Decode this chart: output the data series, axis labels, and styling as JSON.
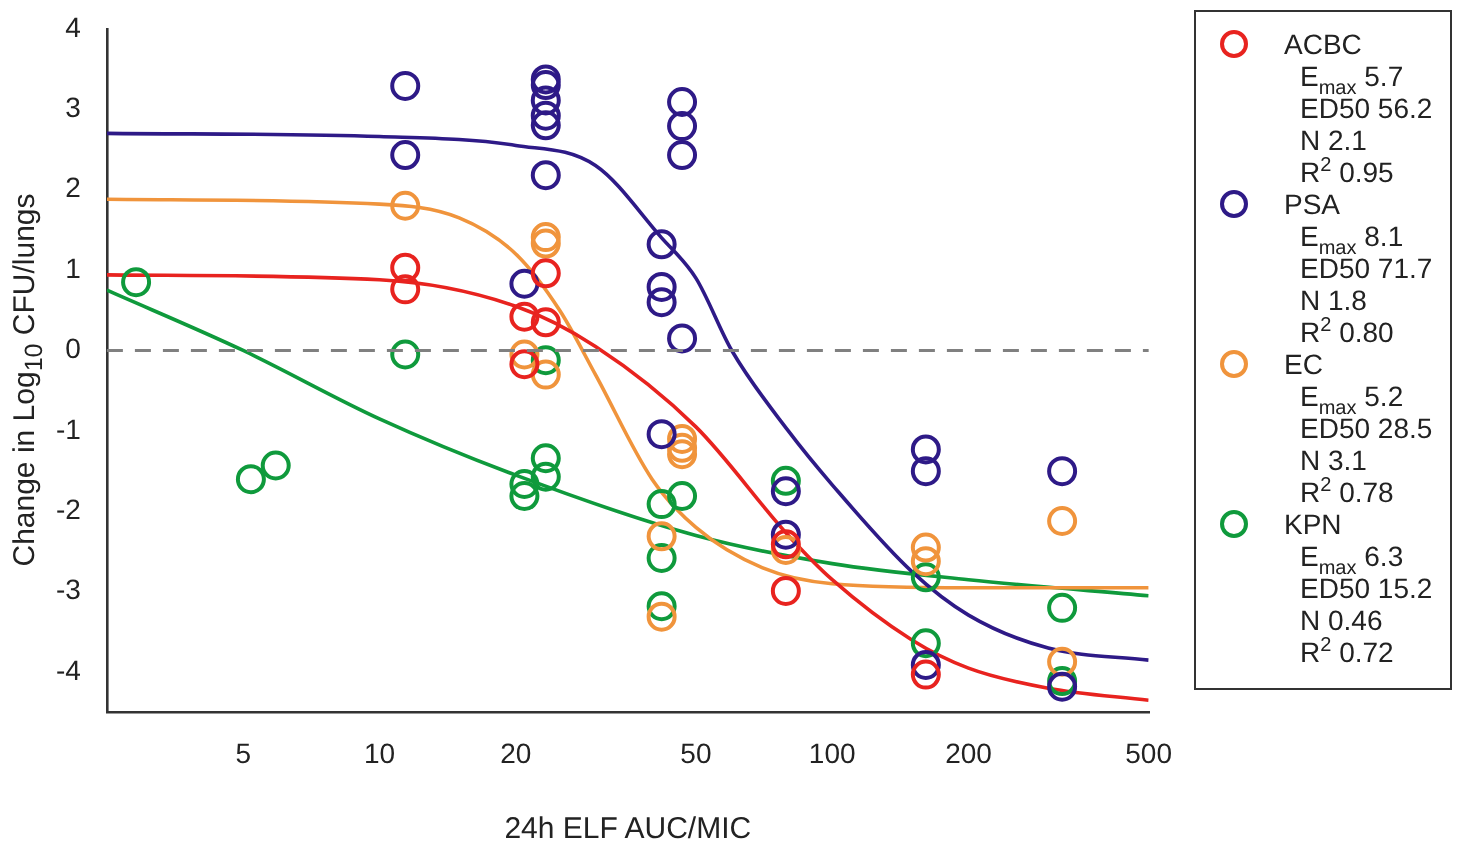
{
  "chart_data": {
    "type": "scatter",
    "xlabel": "24h ELF AUC/MIC",
    "ylabel": "Change in Log$_{10}$ CFU/lungs",
    "log": "x",
    "xlim": [
      2.5,
      500
    ],
    "xticks": [
      5,
      10,
      20,
      50,
      100,
      200,
      500
    ],
    "ylim": [
      -4.5,
      4
    ],
    "yticks": [
      -4,
      -3,
      -2,
      -1,
      0,
      1,
      2,
      3,
      4
    ],
    "grid": false,
    "legend": "right",
    "ref_lines": [
      {
        "axis": "y",
        "value": 0,
        "color": "#808080",
        "line_style": "dashed"
      }
    ],
    "annotations": [
      "E$_{max}$ 5.7",
      "ED50 56.2",
      "N 2.1",
      "R$^{2}$ 0.95",
      "E$_{max}$ 8.1",
      "ED50 71.7",
      "N 1.8",
      "R$^{2}$ 0.80",
      "E$_{max}$ 5.2",
      "ED50 28.5",
      "N 3.1",
      "R$^{2}$ 0.78",
      "E$_{max}$ 6.3",
      "ED50 15.2",
      "N 0.46",
      "R$^{2}$ 0.72"
    ],
    "series": [
      {
        "marker": "circle",
        "name": "ACBC",
        "color": "#e8231f",
        "x": [
          11.4,
          11.4,
          23.3,
          23.3,
          20.9,
          20.9,
          79,
          79,
          161
        ],
        "values": [
          1.03,
          0.76,
          0.96,
          0.35,
          0.42,
          -0.17,
          -2.41,
          -2.99,
          -4.03
        ]
      },
      {
        "marker": "circle",
        "name": "PSA",
        "color": "#2e1a87",
        "x": [
          11.4,
          11.4,
          23.3,
          23.3,
          23.3,
          23.3,
          23.3,
          23.3,
          20.9,
          46.6,
          46.6,
          46.6,
          46.6,
          42,
          42,
          42,
          42,
          79,
          79,
          161,
          161,
          161,
          322,
          322
        ],
        "values": [
          3.29,
          2.43,
          3.37,
          3.3,
          3.11,
          2.92,
          2.8,
          2.18,
          0.83,
          3.09,
          2.79,
          2.43,
          0.15,
          1.32,
          0.79,
          0.6,
          -1.04,
          -1.75,
          -2.29,
          -1.23,
          -1.5,
          -3.91,
          -1.5,
          -4.18
        ]
      },
      {
        "marker": "circle",
        "name": "EC",
        "color": "#f0943c",
        "x": [
          11.4,
          23.3,
          23.3,
          23.3,
          20.9,
          46.6,
          46.6,
          46.6,
          42,
          42,
          79,
          161,
          161,
          322,
          322
        ],
        "values": [
          1.8,
          1.41,
          1.33,
          -0.3,
          -0.05,
          -1.1,
          -1.21,
          -1.29,
          -2.31,
          -3.31,
          -2.48,
          -2.45,
          -2.62,
          -2.12,
          -3.87
        ]
      },
      {
        "marker": "circle",
        "name": "KPN",
        "color": "#0f9a3c",
        "x": [
          2.9,
          11.4,
          23.3,
          23.3,
          23.3,
          20.9,
          20.9,
          5.2,
          5.9,
          42,
          42,
          42,
          46.6,
          79,
          161,
          161,
          322,
          322
        ],
        "values": [
          0.85,
          -0.05,
          -0.12,
          -1.34,
          -1.57,
          -1.66,
          -1.81,
          -1.6,
          -1.43,
          -1.91,
          -2.58,
          -3.18,
          -1.81,
          -1.62,
          -2.82,
          -3.64,
          -3.2,
          -4.11
        ]
      },
      {
        "type": "line",
        "color": "#e8231f",
        "x": [
          2.5,
          10,
          20,
          30,
          50,
          80,
          100,
          150,
          200,
          300,
          500
        ],
        "values": [
          0.94,
          0.88,
          0.55,
          0.05,
          -0.95,
          -2.3,
          -2.85,
          -3.6,
          -3.95,
          -4.2,
          -4.35
        ]
      },
      {
        "type": "line",
        "color": "#2e1a87",
        "x": [
          2.5,
          10,
          20,
          30,
          42,
          50,
          60,
          80,
          100,
          150,
          200,
          300,
          500
        ],
        "values": [
          2.7,
          2.66,
          2.55,
          2.3,
          1.4,
          0.9,
          0,
          -1,
          -1.67,
          -2.75,
          -3.29,
          -3.7,
          -3.85
        ]
      },
      {
        "type": "line",
        "color": "#f0943c",
        "x": [
          2.5,
          10,
          15,
          20,
          25,
          30,
          40,
          50,
          70,
          100,
          200,
          500
        ],
        "values": [
          1.88,
          1.82,
          1.65,
          1.2,
          0.5,
          -0.3,
          -1.6,
          -2.2,
          -2.7,
          -2.9,
          -2.95,
          -2.95
        ]
      },
      {
        "type": "line",
        "color": "#0f9a3c",
        "x": [
          2.5,
          5,
          10,
          20,
          50,
          100,
          200,
          500
        ],
        "values": [
          0.75,
          0,
          -0.85,
          -1.55,
          -2.3,
          -2.65,
          -2.85,
          -3.05
        ]
      }
    ]
  }
}
